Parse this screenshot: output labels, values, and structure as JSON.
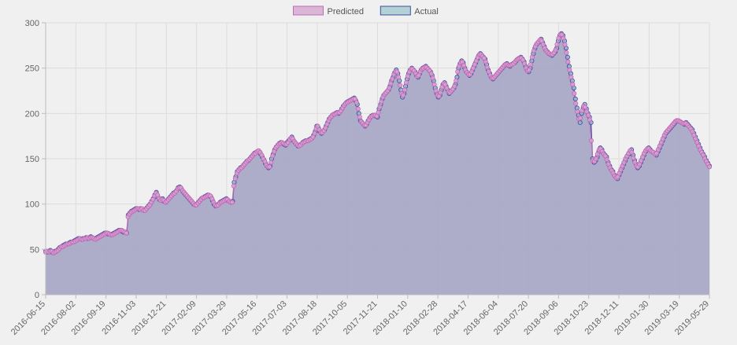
{
  "chart_data": {
    "type": "line",
    "legend": {
      "placement": "top-center",
      "items": [
        {
          "label": "Predicted",
          "fill": "#d9b6d6",
          "stroke": "#c26ab5"
        },
        {
          "label": "Actual",
          "fill": "#b4d2d6",
          "stroke": "#3b4fa0"
        }
      ]
    },
    "ylim": [
      0,
      300
    ],
    "y_ticks": [
      "0",
      "50",
      "100",
      "150",
      "200",
      "250",
      "300"
    ],
    "x_tick_labels": [
      "2016-06-15",
      "2016-08-02",
      "2016-09-19",
      "2016-11-03",
      "2016-12-21",
      "2017-02-09",
      "2017-03-29",
      "2017-05-16",
      "2017-07-03",
      "2017-08-18",
      "2017-10-05",
      "2017-11-21",
      "2018-01-10",
      "2018-02-28",
      "2018-04-17",
      "2018-06-04",
      "2018-07-20",
      "2018-09-06",
      "2018-10-23",
      "2018-12-11",
      "2019-01-30",
      "2019-03-19",
      "2019-05-29"
    ],
    "grid": true,
    "fill_color": "#a9a9c6",
    "series": [
      {
        "name": "Actual",
        "color": "#3b4fa0",
        "values": [
          48,
          47,
          48,
          49,
          47,
          47,
          48,
          48,
          50,
          52,
          53,
          54,
          55,
          56,
          56,
          57,
          58,
          58,
          59,
          60,
          61,
          62,
          62,
          61,
          62,
          62,
          63,
          62,
          63,
          64,
          63,
          62,
          62,
          63,
          64,
          65,
          66,
          67,
          68,
          68,
          67,
          67,
          66,
          67,
          68,
          69,
          70,
          71,
          71,
          70,
          69,
          69,
          68,
          88,
          90,
          92,
          93,
          94,
          95,
          95,
          94,
          95,
          94,
          93,
          94,
          96,
          98,
          100,
          103,
          106,
          110,
          113,
          108,
          105,
          104,
          106,
          103,
          102,
          104,
          106,
          108,
          110,
          112,
          113,
          115,
          118,
          119,
          117,
          114,
          112,
          110,
          108,
          106,
          104,
          102,
          100,
          99,
          100,
          102,
          104,
          106,
          107,
          108,
          109,
          110,
          109,
          108,
          104,
          100,
          98,
          99,
          100,
          102,
          103,
          104,
          105,
          106,
          104,
          103,
          102,
          103,
          124,
          130,
          136,
          138,
          140,
          141,
          143,
          145,
          147,
          148,
          150,
          152,
          154,
          156,
          157,
          158,
          158,
          155,
          152,
          149,
          145,
          142,
          140,
          142,
          150,
          155,
          160,
          163,
          165,
          167,
          168,
          167,
          166,
          165,
          168,
          170,
          172,
          174,
          170,
          168,
          166,
          164,
          165,
          166,
          168,
          169,
          170,
          170,
          171,
          172,
          173,
          176,
          180,
          186,
          184,
          180,
          178,
          180,
          182,
          186,
          190,
          194,
          196,
          198,
          199,
          200,
          201,
          200,
          202,
          205,
          208,
          210,
          212,
          213,
          214,
          215,
          216,
          217,
          214,
          210,
          200,
          192,
          190,
          188,
          186,
          188,
          192,
          195,
          197,
          198,
          198,
          197,
          196,
          205,
          210,
          216,
          220,
          222,
          224,
          226,
          230,
          236,
          240,
          245,
          248,
          244,
          236,
          226,
          218,
          222,
          230,
          238,
          244,
          248,
          250,
          248,
          246,
          242,
          240,
          244,
          248,
          250,
          251,
          252,
          250,
          248,
          246,
          242,
          236,
          228,
          222,
          218,
          220,
          226,
          232,
          234,
          230,
          226,
          222,
          224,
          226,
          228,
          232,
          240,
          250,
          255,
          258,
          256,
          250,
          246,
          244,
          242,
          244,
          248,
          252,
          256,
          260,
          264,
          266,
          264,
          262,
          260,
          254,
          248,
          244,
          240,
          238,
          240,
          242,
          244,
          246,
          248,
          250,
          252,
          254,
          255,
          253,
          252,
          254,
          255,
          256,
          258,
          260,
          261,
          262,
          260,
          257,
          252,
          248,
          246,
          250,
          258,
          266,
          272,
          276,
          278,
          280,
          282,
          278,
          274,
          270,
          268,
          266,
          265,
          264,
          266,
          268,
          272,
          280,
          286,
          288,
          286,
          280,
          272,
          262,
          252,
          244,
          236,
          228,
          216,
          206,
          198,
          190,
          200,
          206,
          210,
          205,
          200,
          196,
          190,
          150,
          146,
          148,
          152,
          158,
          162,
          160,
          156,
          154,
          152,
          146,
          142,
          138,
          136,
          132,
          130,
          128,
          132,
          136,
          140,
          144,
          148,
          152,
          155,
          158,
          160,
          154,
          148,
          144,
          140,
          142,
          146,
          150,
          154,
          158,
          160,
          162,
          160,
          158,
          157,
          156,
          154,
          158,
          162,
          166,
          170,
          174,
          178,
          180,
          182,
          184,
          186,
          188,
          190,
          192,
          192,
          191,
          190,
          189,
          188,
          190,
          188,
          186,
          184,
          182,
          178,
          174,
          170,
          166,
          162,
          158,
          155,
          152,
          148,
          145,
          142
        ]
      },
      {
        "name": "Predicted",
        "color": "#c26ab5",
        "values": [
          47,
          48,
          47,
          48,
          48,
          46,
          47,
          48,
          49,
          51,
          53,
          53,
          54,
          55,
          56,
          56,
          57,
          58,
          58,
          59,
          60,
          61,
          62,
          61,
          61,
          62,
          62,
          63,
          62,
          63,
          63,
          62,
          61,
          62,
          63,
          64,
          65,
          66,
          67,
          68,
          68,
          67,
          66,
          66,
          67,
          68,
          69,
          70,
          71,
          71,
          70,
          69,
          68,
          86,
          89,
          91,
          92,
          93,
          94,
          95,
          95,
          94,
          95,
          93,
          93,
          95,
          97,
          99,
          102,
          105,
          109,
          112,
          110,
          106,
          104,
          105,
          104,
          102,
          103,
          105,
          107,
          109,
          111,
          112,
          114,
          117,
          118,
          118,
          115,
          113,
          111,
          109,
          107,
          105,
          103,
          101,
          99,
          99,
          101,
          103,
          105,
          107,
          107,
          108,
          109,
          110,
          109,
          106,
          102,
          99,
          98,
          99,
          101,
          102,
          103,
          104,
          105,
          105,
          103,
          102,
          102,
          120,
          128,
          134,
          137,
          139,
          140,
          142,
          144,
          146,
          148,
          149,
          151,
          153,
          155,
          156,
          158,
          159,
          157,
          154,
          150,
          147,
          143,
          141,
          141,
          146,
          153,
          158,
          162,
          164,
          166,
          167,
          168,
          167,
          166,
          166,
          168,
          171,
          173,
          172,
          169,
          167,
          165,
          164,
          165,
          167,
          168,
          169,
          170,
          170,
          171,
          172,
          174,
          178,
          183,
          186,
          182,
          179,
          179,
          181,
          184,
          188,
          192,
          195,
          197,
          199,
          199,
          200,
          201,
          201,
          203,
          206,
          209,
          211,
          212,
          213,
          214,
          215,
          216,
          216,
          212,
          205,
          196,
          191,
          189,
          187,
          187,
          190,
          193,
          196,
          197,
          198,
          198,
          197,
          201,
          207,
          213,
          218,
          221,
          223,
          225,
          228,
          233,
          238,
          243,
          246,
          246,
          240,
          231,
          222,
          220,
          226,
          234,
          241,
          246,
          249,
          249,
          247,
          244,
          241,
          242,
          246,
          249,
          250,
          251,
          251,
          249,
          247,
          244,
          239,
          232,
          225,
          220,
          219,
          223,
          229,
          233,
          232,
          228,
          224,
          223,
          225,
          227,
          230,
          236,
          246,
          252,
          256,
          257,
          253,
          248,
          245,
          243,
          243,
          246,
          250,
          254,
          258,
          262,
          265,
          265,
          263,
          261,
          257,
          251,
          246,
          242,
          239,
          239,
          241,
          243,
          245,
          247,
          249,
          251,
          253,
          254,
          254,
          253,
          253,
          254,
          255,
          257,
          259,
          260,
          261,
          261,
          259,
          255,
          250,
          247,
          248,
          254,
          262,
          269,
          274,
          277,
          279,
          281,
          280,
          276,
          272,
          269,
          267,
          266,
          265,
          265,
          267,
          270,
          276,
          283,
          287,
          287,
          283,
          276,
          267,
          257,
          248,
          240,
          232,
          222,
          211,
          202,
          194,
          195,
          203,
          208,
          207,
          202,
          198,
          193,
          170,
          148,
          147,
          150,
          155,
          160,
          161,
          158,
          155,
          153,
          149,
          144,
          140,
          137,
          134,
          131,
          129,
          130,
          134,
          138,
          142,
          146,
          150,
          153,
          156,
          159,
          157,
          151,
          146,
          142,
          141,
          144,
          148,
          152,
          156,
          159,
          161,
          161,
          159,
          158,
          157,
          155,
          156,
          160,
          164,
          168,
          172,
          176,
          179,
          181,
          183,
          185,
          187,
          189,
          191,
          192,
          192,
          191,
          190,
          189,
          189,
          189,
          187,
          185,
          183,
          180,
          176,
          172,
          168,
          164,
          160,
          157,
          154,
          150,
          147,
          144,
          141
        ]
      }
    ]
  }
}
